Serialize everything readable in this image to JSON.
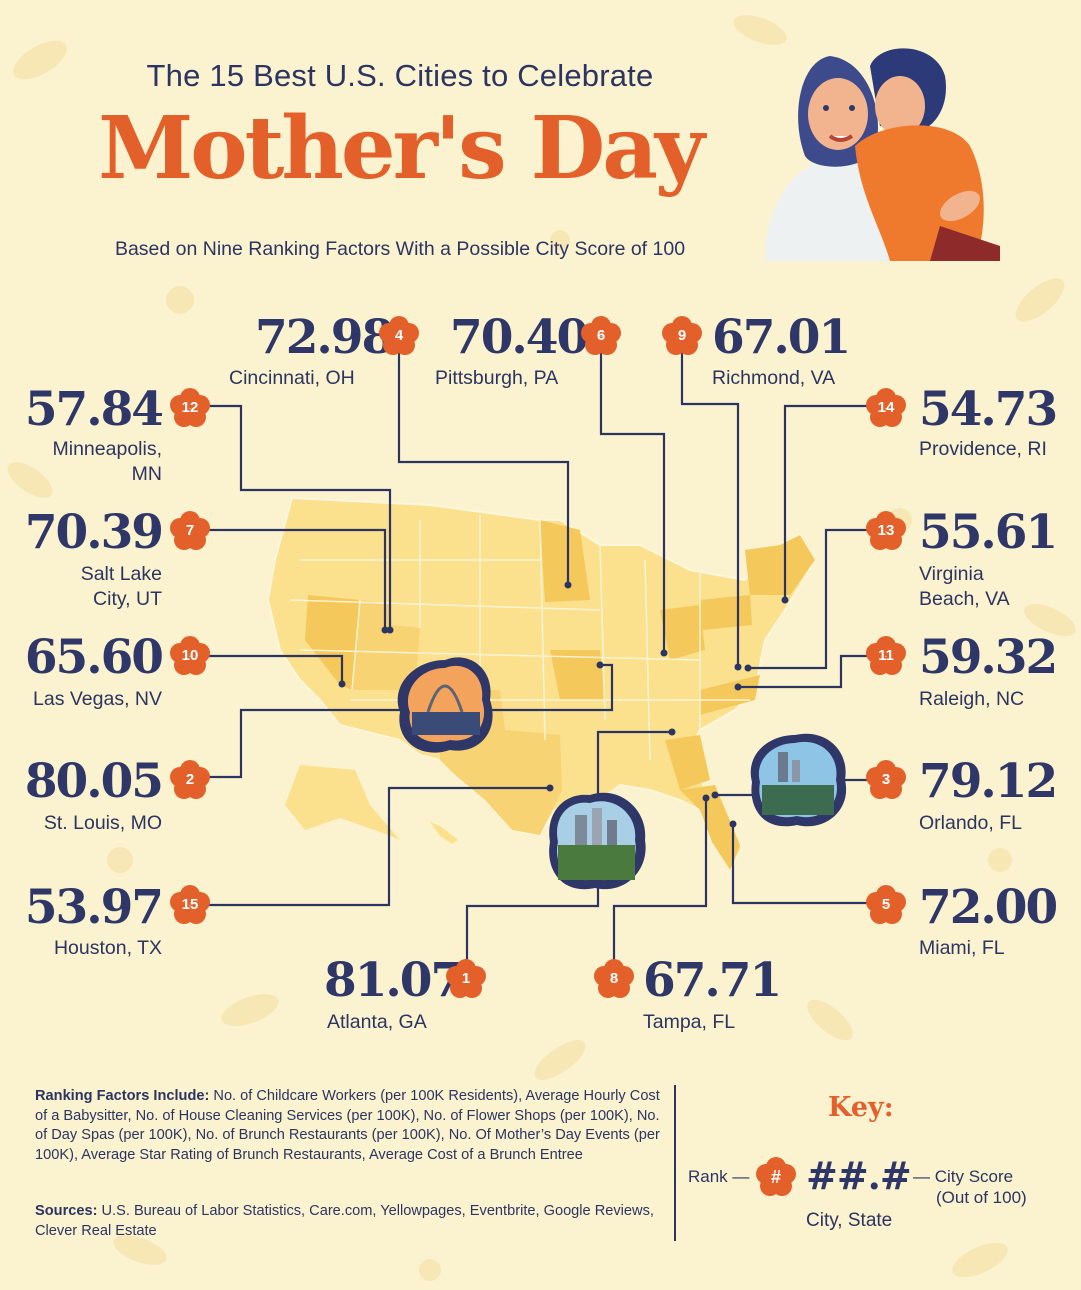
{
  "header": {
    "subtitle": "The 15 Best U.S. Cities to Celebrate",
    "title": "Mother's Day",
    "tagline": "Based on Nine Ranking Factors With a Possible City Score of 100"
  },
  "colors": {
    "background": "#fbf3cf",
    "accent": "#e4602a",
    "navy": "#2f3768",
    "map_light": "#fbe08e",
    "map_dark": "#f4c85a"
  },
  "cities": [
    {
      "rank": "1",
      "score": "81.07",
      "name": "Atlanta, GA"
    },
    {
      "rank": "2",
      "score": "80.05",
      "name": "St. Louis, MO"
    },
    {
      "rank": "3",
      "score": "79.12",
      "name": "Orlando, FL"
    },
    {
      "rank": "4",
      "score": "72.98",
      "name": "Cincinnati, OH"
    },
    {
      "rank": "5",
      "score": "72.00",
      "name": "Miami, FL"
    },
    {
      "rank": "6",
      "score": "70.40",
      "name": "Pittsburgh, PA"
    },
    {
      "rank": "7",
      "score": "70.39",
      "name_line1": "Salt Lake",
      "name_line2": "City, UT"
    },
    {
      "rank": "8",
      "score": "67.71",
      "name": "Tampa, FL"
    },
    {
      "rank": "9",
      "score": "67.01",
      "name": "Richmond, VA"
    },
    {
      "rank": "10",
      "score": "65.60",
      "name": "Las Vegas, NV"
    },
    {
      "rank": "11",
      "score": "59.32",
      "name": "Raleigh, NC"
    },
    {
      "rank": "12",
      "score": "57.84",
      "name_line1": "Minneapolis,",
      "name_line2": "MN"
    },
    {
      "rank": "13",
      "score": "55.61",
      "name_line1": "Virginia",
      "name_line2": "Beach, VA"
    },
    {
      "rank": "14",
      "score": "54.73",
      "name": "Providence, RI"
    },
    {
      "rank": "15",
      "score": "53.97",
      "name": "Houston, TX"
    }
  ],
  "footer": {
    "factors_label": "Ranking Factors Include:",
    "factors_text": " No. of Childcare Workers (per 100K Residents), Average Hourly Cost of a Babysitter, No. of House Cleaning Services (per 100K), No. of Flower Shops (per 100K), No. of Day Spas (per 100K), No. of Brunch Restaurants (per 100K), No. Of Mother’s Day Events (per 100K), Average Star Rating of Brunch Restaurants, Average Cost of a Brunch Entree",
    "sources_label": "Sources:",
    "sources_text": " U.S. Bureau of Labor Statistics, Care.com, Yellowpages, Eventbrite, Google Reviews, Clever Real Estate"
  },
  "key": {
    "title": "Key:",
    "rank_label": "Rank —",
    "badge": "#",
    "score_placeholder": "##.#",
    "score_label": "— City Score",
    "score_sub": "(Out of 100)",
    "city_label": "City, State"
  }
}
